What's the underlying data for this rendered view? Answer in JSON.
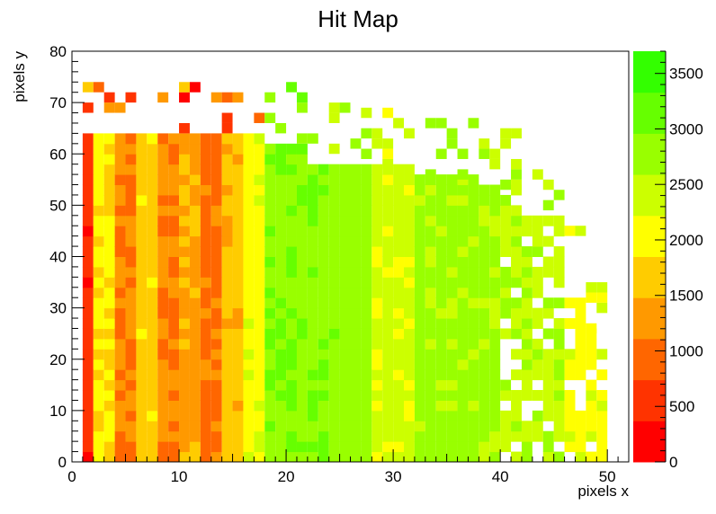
{
  "chart_data": {
    "type": "heatmap",
    "title": "Hit Map",
    "xlabel": "pixels x",
    "ylabel": "pixels y",
    "xlim": [
      0,
      52
    ],
    "ylim": [
      0,
      80
    ],
    "zlim": [
      0,
      3700
    ],
    "x_ticks": [
      "0",
      "10",
      "20",
      "30",
      "40",
      "50"
    ],
    "y_ticks": [
      "0",
      "10",
      "20",
      "30",
      "40",
      "50",
      "60",
      "70",
      "80"
    ],
    "z_ticks": [
      "0",
      "500",
      "1000",
      "1500",
      "2000",
      "2500",
      "3000",
      "3500"
    ],
    "palette": [
      "#ff0000",
      "#ff3300",
      "#ff6600",
      "#ff9900",
      "#ffcc00",
      "#ffff00",
      "#ccff00",
      "#99ff00",
      "#66ff00",
      "#33ff00"
    ],
    "column_profile": [
      {
        "x_from": 1,
        "x_to": 2,
        "value": 500
      },
      {
        "x_from": 2,
        "x_to": 4,
        "value": 1900
      },
      {
        "x_from": 4,
        "x_to": 6,
        "value": 1100
      },
      {
        "x_from": 6,
        "x_to": 8,
        "value": 1700
      },
      {
        "x_from": 8,
        "x_to": 10,
        "value": 1100
      },
      {
        "x_from": 10,
        "x_to": 12,
        "value": 1400
      },
      {
        "x_from": 12,
        "x_to": 14,
        "value": 1000
      },
      {
        "x_from": 14,
        "x_to": 16,
        "value": 1600
      },
      {
        "x_from": 16,
        "x_to": 18,
        "value": 2100
      },
      {
        "x_from": 18,
        "x_to": 24,
        "value": 2900
      },
      {
        "x_from": 24,
        "x_to": 28,
        "value": 2800
      },
      {
        "x_from": 28,
        "x_to": 32,
        "value": 2300
      },
      {
        "x_from": 32,
        "x_to": 40,
        "value": 2700
      },
      {
        "x_from": 40,
        "x_to": 46,
        "value": 2500
      },
      {
        "x_from": 46,
        "x_to": 50,
        "value": 2100
      }
    ],
    "top_edge": [
      {
        "x_from": 1,
        "x_to": 18,
        "y": 64
      },
      {
        "x_from": 18,
        "x_to": 22,
        "y": 62
      },
      {
        "x_from": 22,
        "x_to": 26,
        "y": 58
      },
      {
        "x_from": 26,
        "x_to": 32,
        "y": 57
      },
      {
        "x_from": 32,
        "x_to": 38,
        "y": 55
      },
      {
        "x_from": 38,
        "x_to": 42,
        "y": 53
      },
      {
        "x_from": 42,
        "x_to": 46,
        "y": 47
      },
      {
        "x_from": 46,
        "x_to": 48,
        "y": 34
      },
      {
        "x_from": 48,
        "x_to": 51,
        "y": 25
      }
    ],
    "grid": false,
    "legend": "color bar right"
  }
}
